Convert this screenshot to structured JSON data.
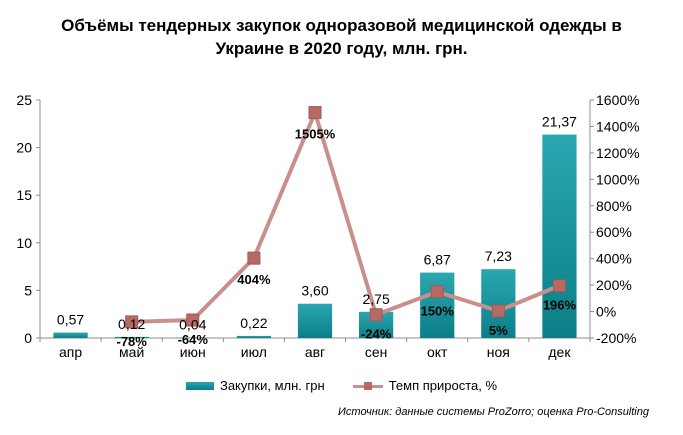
{
  "title_lines": [
    "Объёмы тендерных закупок одноразовой медицинской одежды в",
    "Украине в  2020 году, млн. грн."
  ],
  "source": "Источник: данные системы ProZorro; оценка Pro-Consulting",
  "colors": {
    "bar": "#14939c",
    "bar_dark": "#0b7f88",
    "line": "#c98f8b",
    "marker": "#b56a66"
  },
  "chart_data": {
    "type": "bar",
    "categories": [
      "апр",
      "май",
      "июн",
      "июл",
      "авг",
      "сен",
      "окт",
      "ноя",
      "дек"
    ],
    "series": [
      {
        "name": "Закупки, млн. грн",
        "type": "bar",
        "axis": "left",
        "values": [
          0.57,
          0.12,
          0.04,
          0.22,
          3.6,
          2.75,
          6.87,
          7.23,
          21.37
        ],
        "labels": [
          "0,57",
          "0,12",
          "0,04",
          "0,22",
          "3,60",
          "2,75",
          "6,87",
          "7,23",
          "21,37"
        ]
      },
      {
        "name": "Темп прироста, %",
        "type": "line",
        "axis": "right",
        "values": [
          null,
          -78,
          -64,
          404,
          1505,
          -24,
          150,
          5,
          196
        ],
        "labels": [
          null,
          "-78%",
          "-64%",
          "404%",
          "1505%",
          "-24%",
          "150%",
          "5%",
          "196%"
        ]
      }
    ],
    "y_left": {
      "lim": [
        0,
        25
      ],
      "ticks": [
        0,
        5,
        10,
        15,
        20,
        25
      ],
      "tick_labels": [
        "0",
        "5",
        "10",
        "15",
        "20",
        "25"
      ]
    },
    "y_right": {
      "lim": [
        -200,
        1600
      ],
      "ticks": [
        -200,
        0,
        200,
        400,
        600,
        800,
        1000,
        1200,
        1400,
        1600
      ],
      "tick_labels": [
        "-200%",
        "0%",
        "200%",
        "400%",
        "600%",
        "800%",
        "1000%",
        "1200%",
        "1400%",
        "1600%"
      ]
    },
    "grid": false,
    "legend": "bottom"
  }
}
